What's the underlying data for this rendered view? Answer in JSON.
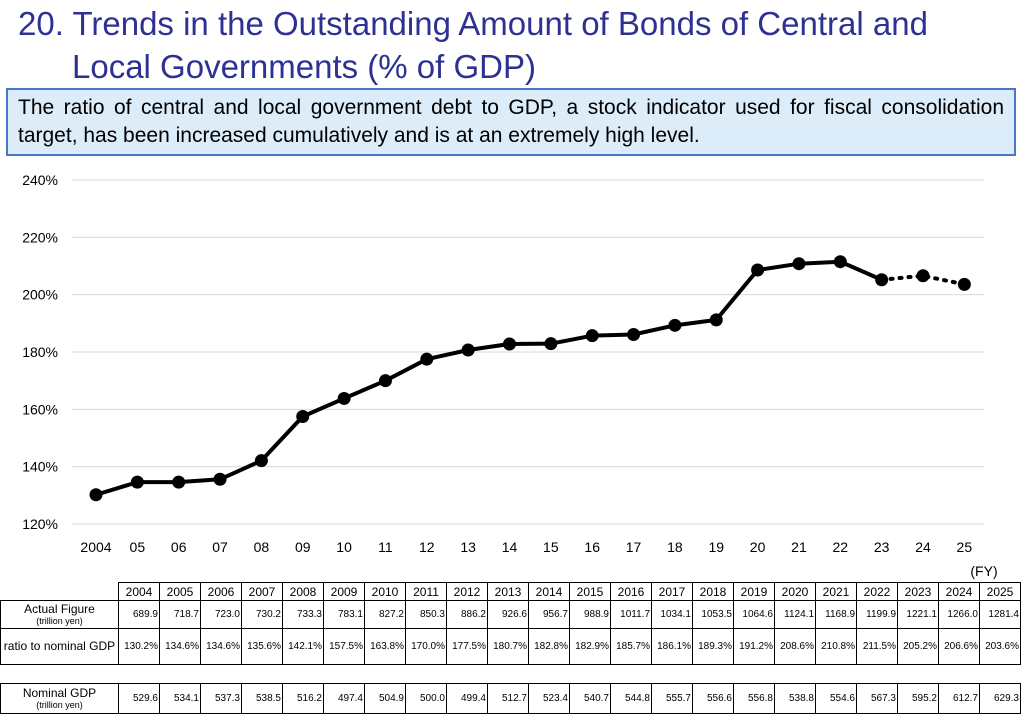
{
  "title": {
    "line1": "20. Trends in the Outstanding Amount of Bonds of Central and",
    "line2": "Local Governments (% of GDP)"
  },
  "note": "The ratio of central and local government debt to GDP, a stock indicator used for fiscal consolidation target, has been increased cumulatively and is at an extremely high level.",
  "chart_data": {
    "type": "line",
    "x_tick_labels": [
      "2004",
      "05",
      "06",
      "07",
      "08",
      "09",
      "10",
      "11",
      "12",
      "13",
      "14",
      "15",
      "16",
      "17",
      "18",
      "19",
      "20",
      "21",
      "22",
      "23",
      "24",
      "25"
    ],
    "x_unit_label": "(FY)",
    "y_ticks": [
      120,
      140,
      160,
      180,
      200,
      220,
      240
    ],
    "y_tick_suffix": "%",
    "ylim": [
      120,
      240
    ],
    "grid": true,
    "series": [
      {
        "values": [
          130.2,
          134.6,
          134.6,
          135.6,
          142.1,
          157.5,
          163.8,
          170.0,
          177.5,
          180.7,
          182.8,
          182.9,
          185.7,
          186.1,
          189.3,
          191.2,
          208.6,
          210.8,
          211.5,
          205.2,
          206.6,
          203.6
        ],
        "solid_until_index": 19,
        "color": "#000000"
      }
    ]
  },
  "table": {
    "years": [
      "2004",
      "2005",
      "2006",
      "2007",
      "2008",
      "2009",
      "2010",
      "2011",
      "2012",
      "2013",
      "2014",
      "2015",
      "2016",
      "2017",
      "2018",
      "2019",
      "2020",
      "2021",
      "2022",
      "2023",
      "2024",
      "2025"
    ],
    "rows": [
      {
        "label": "Actual Figure",
        "sublabel": "(trillion yen)",
        "values": [
          "689.9",
          "718.7",
          "723.0",
          "730.2",
          "733.3",
          "783.1",
          "827.2",
          "850.3",
          "886.2",
          "926.6",
          "956.7",
          "988.9",
          "1011.7",
          "1034.1",
          "1053.5",
          "1064.6",
          "1124.1",
          "1168.9",
          "1199.9",
          "1221.1",
          "1266.0",
          "1281.4"
        ]
      },
      {
        "label": "ratio to nominal GDP",
        "sublabel": "",
        "values": [
          "130.2%",
          "134.6%",
          "134.6%",
          "135.6%",
          "142.1%",
          "157.5%",
          "163.8%",
          "170.0%",
          "177.5%",
          "180.7%",
          "182.8%",
          "182.9%",
          "185.7%",
          "186.1%",
          "189.3%",
          "191.2%",
          "208.6%",
          "210.8%",
          "211.5%",
          "205.2%",
          "206.6%",
          "203.6%"
        ]
      }
    ],
    "gdp_row": {
      "label": "Nominal GDP",
      "sublabel": "(trillion yen)",
      "values": [
        "529.6",
        "534.1",
        "537.3",
        "538.5",
        "516.2",
        "497.4",
        "504.9",
        "500.0",
        "499.4",
        "512.7",
        "523.4",
        "540.7",
        "544.8",
        "555.7",
        "556.6",
        "556.8",
        "538.8",
        "554.6",
        "567.3",
        "595.2",
        "612.7",
        "629.3"
      ]
    }
  }
}
